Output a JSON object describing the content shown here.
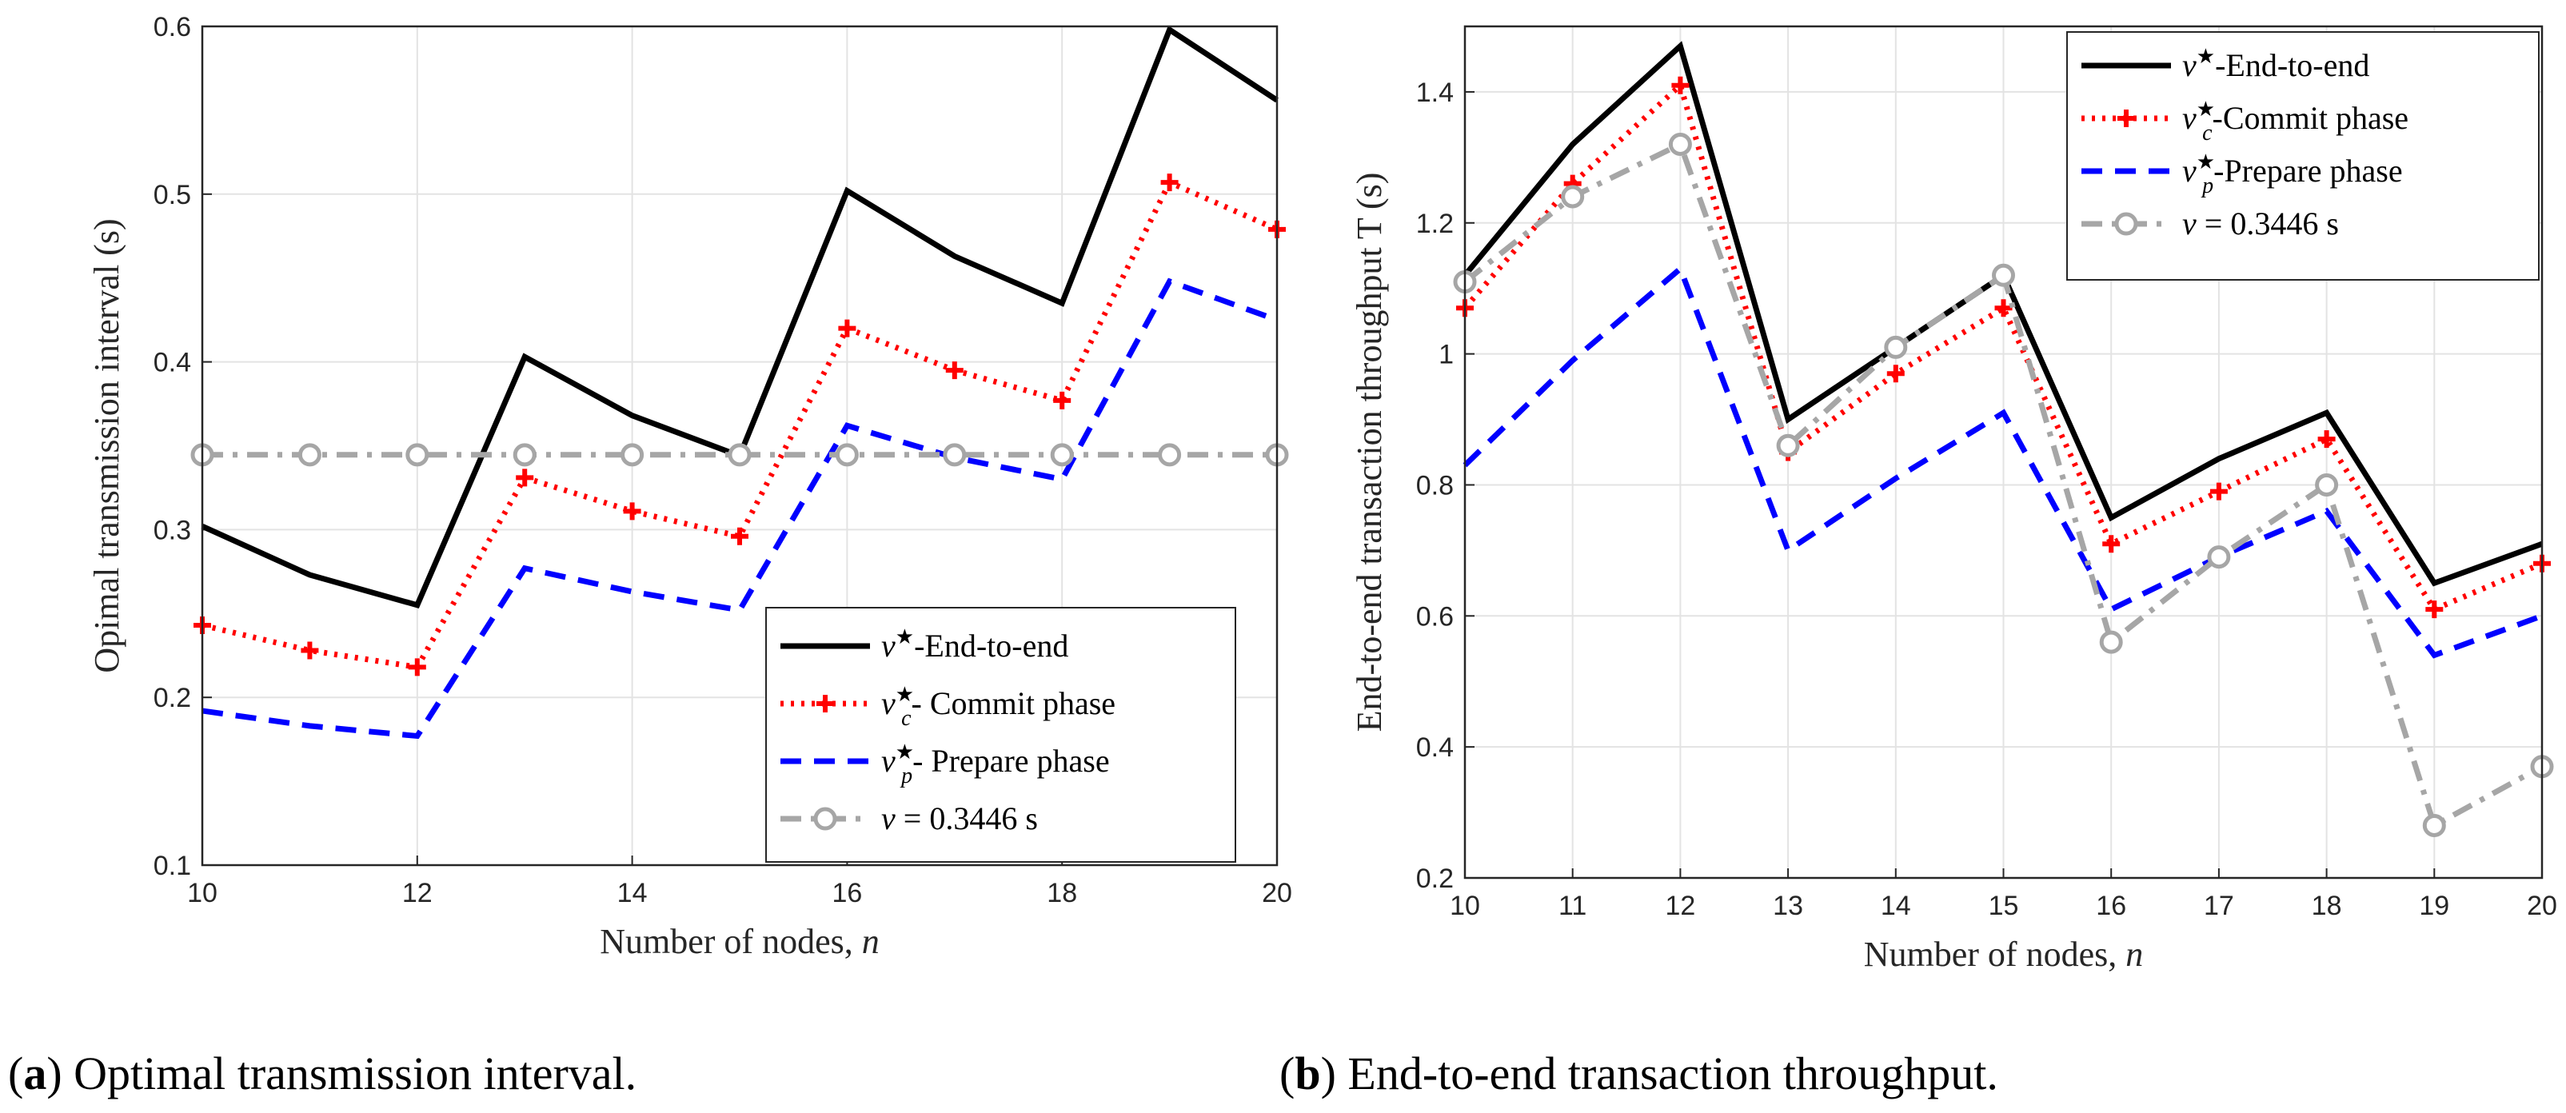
{
  "chart_data": [
    {
      "type": "line",
      "caption_letter": "a",
      "caption_text": "Optimal transmission interval.",
      "caption_open": "(",
      "caption_close": ")",
      "xlabel": "Number of nodes, n",
      "ylabel": "Opimal transmission interval (s)",
      "xlim": [
        10,
        20
      ],
      "ylim": [
        0.1,
        0.6
      ],
      "xticks": [
        10,
        12,
        14,
        16,
        18,
        20
      ],
      "xtick_labels": [
        "10",
        "12",
        "14",
        "16",
        "18",
        "20"
      ],
      "yticks": [
        0.1,
        0.2,
        0.3,
        0.4,
        0.5,
        0.6
      ],
      "ytick_labels": [
        "0.1",
        "0.2",
        "0.3",
        "0.4",
        "0.5",
        "0.6"
      ],
      "grid": true,
      "legend_position": "bottom-right",
      "x": [
        10,
        11,
        12,
        13,
        14,
        15,
        16,
        17,
        18,
        19,
        20
      ],
      "series": [
        {
          "name": "v*-End-to-end",
          "legend_text": "-End-to-end",
          "color": "#000000",
          "style": "solid",
          "marker": "none",
          "values": [
            0.302,
            0.273,
            0.255,
            0.403,
            0.368,
            0.344,
            0.502,
            0.463,
            0.435,
            0.598,
            0.556
          ]
        },
        {
          "name": "v*c- Commit phase",
          "legend_text": "- Commit phase",
          "color": "#ff0000",
          "style": "dotted",
          "marker": "plus",
          "values": [
            0.243,
            0.228,
            0.218,
            0.331,
            0.311,
            0.296,
            0.42,
            0.395,
            0.377,
            0.507,
            0.479
          ]
        },
        {
          "name": "v*p- Prepare phase",
          "legend_text": "- Prepare phase",
          "color": "#0000ff",
          "style": "dashed",
          "marker": "none",
          "values": [
            0.192,
            0.183,
            0.177,
            0.277,
            0.263,
            0.252,
            0.362,
            0.343,
            0.33,
            0.448,
            0.425
          ]
        },
        {
          "name": "v = 0.3446 s",
          "legend_text": " = 0.3446 s",
          "color": "#a6a6a6",
          "style": "dashdot",
          "marker": "circle",
          "values": [
            0.3446,
            0.3446,
            0.3446,
            0.3446,
            0.3446,
            0.3446,
            0.3446,
            0.3446,
            0.3446,
            0.3446,
            0.3446
          ]
        }
      ]
    },
    {
      "type": "line",
      "caption_letter": "b",
      "caption_text": "End-to-end transaction throughput.",
      "caption_open": "(",
      "caption_close": ")",
      "xlabel": "Number of nodes, n",
      "ylabel": "End-to-end transaction throughput T (s)",
      "xlim": [
        10,
        20
      ],
      "ylim": [
        0.2,
        1.5
      ],
      "xticks": [
        10,
        11,
        12,
        13,
        14,
        15,
        16,
        17,
        18,
        19,
        20
      ],
      "xtick_labels": [
        "10",
        "11",
        "12",
        "13",
        "14",
        "15",
        "16",
        "17",
        "18",
        "19",
        "20"
      ],
      "yticks": [
        0.2,
        0.4,
        0.6,
        0.8,
        1.0,
        1.2,
        1.4
      ],
      "ytick_labels": [
        "0.2",
        "0.4",
        "0.6",
        "0.8",
        "1",
        "1.2",
        "1.4"
      ],
      "grid": true,
      "legend_position": "top-right",
      "x": [
        10,
        11,
        12,
        13,
        14,
        15,
        16,
        17,
        18,
        19,
        20
      ],
      "series": [
        {
          "name": "v*-End-to-end",
          "legend_text": "-End-to-end",
          "color": "#000000",
          "style": "solid",
          "marker": "none",
          "values": [
            1.12,
            1.32,
            1.47,
            0.9,
            1.01,
            1.12,
            0.75,
            0.84,
            0.91,
            0.65,
            0.71
          ]
        },
        {
          "name": "v*c-Commit phase",
          "legend_text": "-Commit phase",
          "color": "#ff0000",
          "style": "dotted",
          "marker": "plus",
          "values": [
            1.07,
            1.26,
            1.41,
            0.85,
            0.97,
            1.07,
            0.71,
            0.79,
            0.87,
            0.61,
            0.68
          ]
        },
        {
          "name": "v*p-Prepare phase",
          "legend_text": "-Prepare phase",
          "color": "#0000ff",
          "style": "dashed",
          "marker": "none",
          "values": [
            0.83,
            0.99,
            1.13,
            0.7,
            0.81,
            0.91,
            0.61,
            0.69,
            0.76,
            0.54,
            0.6
          ]
        },
        {
          "name": "v = 0.3446 s",
          "legend_text": " = 0.3446 s",
          "color": "#a6a6a6",
          "style": "dashdot",
          "marker": "circle",
          "values": [
            1.11,
            1.24,
            1.32,
            0.86,
            1.01,
            1.12,
            0.56,
            0.69,
            0.8,
            0.28,
            0.37
          ]
        }
      ]
    }
  ]
}
